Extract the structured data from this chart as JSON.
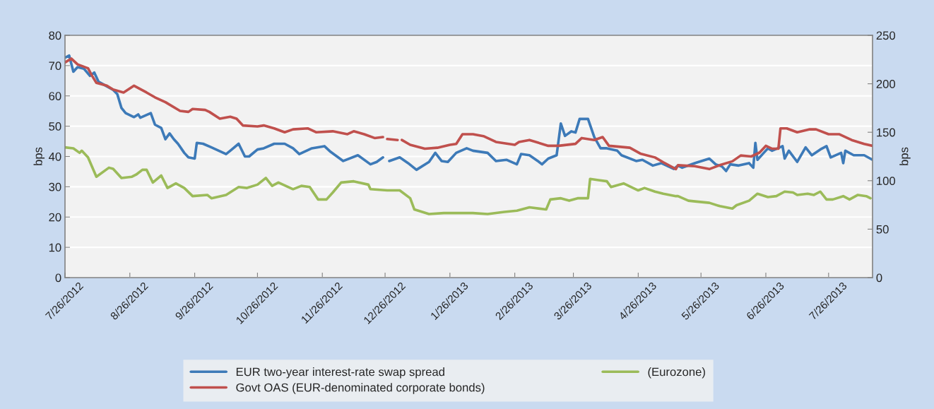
{
  "chart_data": {
    "type": "line",
    "ylabel": "bps",
    "y2label": "bps",
    "xlim": [
      "2012-07-26",
      "2013-08-16"
    ],
    "xticks": [
      {
        "value": "2012-07-26",
        "label": "7/26/2012"
      },
      {
        "value": "2012-08-26",
        "label": "8/26/2012"
      },
      {
        "value": "2012-09-26",
        "label": "9/26/2012"
      },
      {
        "value": "2012-10-26",
        "label": "10/26/2012"
      },
      {
        "value": "2012-11-26",
        "label": "11/26/2012"
      },
      {
        "value": "2012-12-26",
        "label": "12/26/2012"
      },
      {
        "value": "2013-01-26",
        "label": "1/26/2013"
      },
      {
        "value": "2013-02-26",
        "label": "2/26/2013"
      },
      {
        "value": "2013-03-26",
        "label": "3/26/2013"
      },
      {
        "value": "2013-04-26",
        "label": "4/26/2013"
      },
      {
        "value": "2013-05-26",
        "label": "5/26/2013"
      },
      {
        "value": "2013-06-26",
        "label": "6/26/2013"
      },
      {
        "value": "2013-07-26",
        "label": "7/26/2013"
      }
    ],
    "ylim": [
      0,
      80
    ],
    "yticks": [
      0,
      10,
      20,
      30,
      40,
      50,
      60,
      70,
      80
    ],
    "y2lim": [
      0,
      250
    ],
    "y2ticks": [
      0,
      50,
      100,
      150,
      200,
      250
    ],
    "grid": "y",
    "legend": "bottom",
    "marker": "none",
    "line_style": "solid",
    "series": [
      {
        "name": "EUR two-year interest-rate swap spread",
        "color": "#3d7ab8",
        "x": [
          "2012-07-26",
          "2012-07-28",
          "2012-07-30",
          "2012-08-01",
          "2012-08-04",
          "2012-08-07",
          "2012-08-09",
          "2012-08-11",
          "2012-08-18",
          "2012-08-20",
          "2012-08-22",
          "2012-08-24",
          "2012-08-28",
          "2012-08-30",
          "2012-08-31",
          "2012-09-05",
          "2012-09-07",
          "2012-09-10",
          "2012-09-12",
          "2012-09-14",
          "2012-09-16",
          "2012-09-18",
          "2012-09-21",
          "2012-09-23",
          "2012-09-26",
          "2012-09-27",
          "2012-09-30",
          "2012-10-04",
          "2012-10-11",
          "2012-10-13",
          "2012-10-17",
          "2012-10-20",
          "2012-10-22",
          "2012-10-26",
          "2012-10-29",
          "2012-11-03",
          "2012-11-08",
          "2012-11-12",
          "2012-11-15",
          "2012-11-21",
          "2012-11-27",
          "2012-11-30",
          "2012-12-06",
          "2012-12-13",
          "2012-12-19",
          "2012-12-22",
          "2012-12-25",
          "2012-12-27",
          "2012-12-28",
          "2013-01-02",
          "2013-01-06",
          "2013-01-10",
          "2013-01-16",
          "2013-01-19",
          "2013-01-22",
          "2013-01-25",
          "2013-01-29",
          "2013-02-03",
          "2013-02-06",
          "2013-02-13",
          "2013-02-17",
          "2013-02-22",
          "2013-02-27",
          "2013-03-01",
          "2013-03-05",
          "2013-03-09",
          "2013-03-11",
          "2013-03-14",
          "2013-03-18",
          "2013-03-20",
          "2013-03-22",
          "2013-03-25",
          "2013-03-27",
          "2013-03-29",
          "2013-04-02",
          "2013-04-05",
          "2013-04-08",
          "2013-04-11",
          "2013-04-16",
          "2013-04-18",
          "2013-04-25",
          "2013-04-28",
          "2013-05-03",
          "2013-05-07",
          "2013-05-13",
          "2013-05-15",
          "2013-05-17",
          "2013-05-23",
          "2013-05-30",
          "2013-06-02",
          "2013-06-05",
          "2013-06-07",
          "2013-06-09",
          "2013-06-13",
          "2013-06-18",
          "2013-06-20",
          "2013-06-21",
          "2013-06-22",
          "2013-06-25",
          "2013-06-27",
          "2013-06-29",
          "2013-07-04",
          "2013-07-05",
          "2013-07-07",
          "2013-07-11",
          "2013-07-15",
          "2013-07-18",
          "2013-07-22",
          "2013-07-25",
          "2013-07-27",
          "2013-08-01",
          "2013-08-02",
          "2013-08-03",
          "2013-08-07",
          "2013-08-12",
          "2013-08-16"
        ],
        "values": [
          72.6,
          73.3,
          68,
          69.5,
          69,
          66.6,
          67.7,
          64.7,
          62,
          60.6,
          56,
          54.3,
          53,
          53.9,
          52.8,
          54.3,
          50.5,
          49.4,
          45.7,
          47.6,
          45.7,
          44.2,
          41.2,
          39.7,
          39.3,
          44.5,
          44.2,
          43,
          40.8,
          41.9,
          44.2,
          40,
          40,
          42.3,
          42.7,
          44.2,
          44.2,
          42.7,
          40.8,
          42.7,
          43.4,
          41.5,
          38.5,
          40.4,
          37.4,
          38.2,
          39.7,
          null,
          38.5,
          39.7,
          37.8,
          35.6,
          38.2,
          41.2,
          38.5,
          38.2,
          41.2,
          42.7,
          41.9,
          41.2,
          38.5,
          38.9,
          37.4,
          40.8,
          40.4,
          38.5,
          37.4,
          39.3,
          40.4,
          50.9,
          46.8,
          48.3,
          47.9,
          52.4,
          52.4,
          46.4,
          42.7,
          42.7,
          41.9,
          40.4,
          38.5,
          38.9,
          37,
          37.8,
          35.9,
          37,
          36.3,
          37.8,
          39.3,
          37.4,
          36.7,
          35.2,
          37.4,
          37,
          37.8,
          36.3,
          44.5,
          38.9,
          41.2,
          42.7,
          41.9,
          43.4,
          39.3,
          41.9,
          38.2,
          43,
          40.4,
          42.3,
          43.4,
          39.7,
          41.2,
          37.8,
          41.9,
          40.4,
          40.4,
          38.9
        ]
      },
      {
        "name": "(Eurozone)",
        "color": "#9bbb59",
        "x": [
          "2012-07-26",
          "2012-07-30",
          "2012-08-02",
          "2012-08-03",
          "2012-08-06",
          "2012-08-10",
          "2012-08-16",
          "2012-08-18",
          "2012-08-22",
          "2012-08-27",
          "2012-08-29",
          "2012-09-01",
          "2012-09-03",
          "2012-09-06",
          "2012-09-10",
          "2012-09-13",
          "2012-09-17",
          "2012-09-21",
          "2012-09-25",
          "2012-10-02",
          "2012-10-04",
          "2012-10-11",
          "2012-10-17",
          "2012-10-21",
          "2012-10-26",
          "2012-10-30",
          "2012-11-02",
          "2012-11-05",
          "2012-11-12",
          "2012-11-16",
          "2012-11-20",
          "2012-11-24",
          "2012-11-28",
          "2012-12-01",
          "2012-12-05",
          "2012-12-11",
          "2012-12-18",
          "2012-12-19",
          "2012-12-27",
          "2013-01-02",
          "2013-01-07",
          "2013-01-09",
          "2013-01-16",
          "2013-01-23",
          "2013-01-29",
          "2013-02-06",
          "2013-02-13",
          "2013-02-21",
          "2013-02-27",
          "2013-03-05",
          "2013-03-13",
          "2013-03-15",
          "2013-03-20",
          "2013-03-24",
          "2013-03-28",
          "2013-04-02",
          "2013-04-03",
          "2013-04-07",
          "2013-04-11",
          "2013-04-13",
          "2013-04-19",
          "2013-04-26",
          "2013-04-29",
          "2013-05-04",
          "2013-05-08",
          "2013-05-14",
          "2013-05-15",
          "2013-05-20",
          "2013-05-24",
          "2013-05-30",
          "2013-06-04",
          "2013-06-10",
          "2013-06-12",
          "2013-06-18",
          "2013-06-22",
          "2013-06-27",
          "2013-07-01",
          "2013-07-05",
          "2013-07-09",
          "2013-07-11",
          "2013-07-16",
          "2013-07-19",
          "2013-07-22",
          "2013-07-25",
          "2013-07-28",
          "2013-08-02",
          "2013-08-05",
          "2013-08-09",
          "2013-08-13",
          "2013-08-15"
        ],
        "values": [
          43,
          42.7,
          41.2,
          41.9,
          39.7,
          33.3,
          36.3,
          35.9,
          32.9,
          33.3,
          34,
          35.6,
          35.6,
          31.4,
          33.7,
          29.6,
          31.1,
          29.6,
          26.9,
          27.3,
          26.2,
          27.3,
          29.9,
          29.6,
          30.7,
          32.9,
          30.3,
          31.4,
          29.2,
          30.3,
          29.9,
          25.8,
          25.8,
          28.1,
          31.4,
          31.8,
          30.7,
          29.2,
          28.8,
          28.8,
          26.2,
          22.5,
          21,
          21.3,
          21.3,
          21.3,
          21,
          21.7,
          22.1,
          23.2,
          22.5,
          25.8,
          26.2,
          25.4,
          26.2,
          26.2,
          32.6,
          32.2,
          31.8,
          29.9,
          31.1,
          28.8,
          29.6,
          28.4,
          27.7,
          26.9,
          26.9,
          25.4,
          25.1,
          24.7,
          23.6,
          22.8,
          23.9,
          25.4,
          27.7,
          26.6,
          26.9,
          28.4,
          28.1,
          27.3,
          27.7,
          27.3,
          28.4,
          25.8,
          25.8,
          26.9,
          25.8,
          27.3,
          26.9,
          26.2
        ]
      },
      {
        "name": "Govt OAS (EUR-denominated corporate bonds)",
        "color": "#c0504d",
        "axis": "y2",
        "x": [
          "2012-07-26",
          "2012-07-29",
          "2012-08-01",
          "2012-08-06",
          "2012-08-08",
          "2012-08-10",
          "2012-08-15",
          "2012-08-18",
          "2012-08-23",
          "2012-08-28",
          "2012-09-03",
          "2012-09-07",
          "2012-09-12",
          "2012-09-19",
          "2012-09-23",
          "2012-09-25",
          "2012-10-01",
          "2012-10-03",
          "2012-10-08",
          "2012-10-13",
          "2012-10-16",
          "2012-10-19",
          "2012-10-26",
          "2012-10-29",
          "2012-11-03",
          "2012-11-08",
          "2012-11-12",
          "2012-11-19",
          "2012-11-23",
          "2012-12-01",
          "2012-12-08",
          "2012-12-11",
          "2012-12-16",
          "2012-12-21",
          "2012-12-25",
          "2012-12-26",
          "2012-12-27",
          "2013-01-01",
          "2013-01-02",
          "2013-01-03",
          "2013-01-07",
          "2013-01-14",
          "2013-01-20",
          "2013-01-26",
          "2013-01-29",
          "2013-02-01",
          "2013-02-06",
          "2013-02-11",
          "2013-02-17",
          "2013-02-26",
          "2013-02-28",
          "2013-03-05",
          "2013-03-14",
          "2013-03-19",
          "2013-03-27",
          "2013-03-30",
          "2013-04-05",
          "2013-04-09",
          "2013-04-12",
          "2013-04-22",
          "2013-04-27",
          "2013-05-04",
          "2013-05-08",
          "2013-05-14",
          "2013-05-15",
          "2013-05-23",
          "2013-05-30",
          "2013-06-04",
          "2013-06-10",
          "2013-06-14",
          "2013-06-19",
          "2013-06-23",
          "2013-06-26",
          "2013-06-29",
          "2013-07-02",
          "2013-07-03",
          "2013-07-06",
          "2013-07-11",
          "2013-07-17",
          "2013-07-20",
          "2013-07-26",
          "2013-07-31",
          "2013-08-06",
          "2013-08-12",
          "2013-08-16"
        ],
        "values": [
          222,
          226,
          220,
          216,
          208,
          201,
          198,
          194,
          191,
          198,
          191,
          186,
          181,
          172,
          171,
          174,
          173,
          171,
          164,
          166,
          164,
          157,
          156,
          157,
          154,
          150,
          153,
          154,
          150,
          151,
          148,
          151,
          148,
          144,
          145,
          null,
          143,
          142,
          null,
          142,
          137,
          133,
          134,
          137,
          138,
          148,
          148,
          146,
          140,
          137,
          140,
          142,
          136,
          136,
          138,
          144,
          142,
          145,
          136,
          134,
          128,
          124,
          119,
          112,
          116,
          115,
          112,
          116,
          120,
          126,
          125,
          129,
          136,
          133,
          133,
          154,
          154,
          150,
          153,
          153,
          148,
          148,
          142,
          138,
          136
        ]
      }
    ]
  }
}
